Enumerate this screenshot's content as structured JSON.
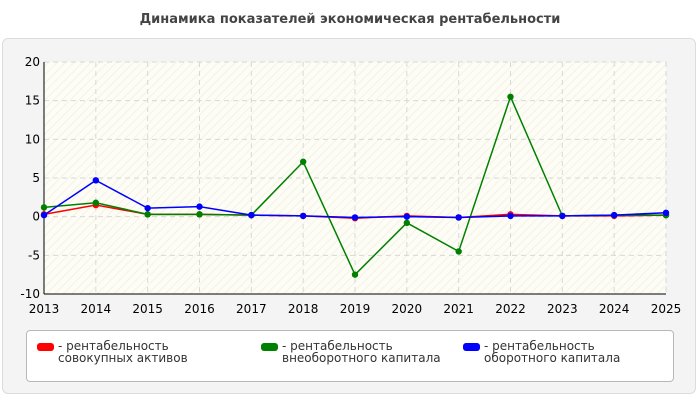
{
  "page_title": "Динамика показателей экономическая рентабельности",
  "chart_data": {
    "type": "line",
    "title": "Динамика показателей экономическая рентабельности",
    "xlabel": "",
    "ylabel": "",
    "x": [
      "2013",
      "2014",
      "2015",
      "2016",
      "2017",
      "2018",
      "2019",
      "2020",
      "2021",
      "2022",
      "2023",
      "2024",
      "2025"
    ],
    "ylim": [
      -10,
      20
    ],
    "yticks": [
      -10,
      -5,
      0,
      5,
      10,
      15,
      20
    ],
    "grid": true,
    "legend_position": "bottom",
    "series": [
      {
        "name": "рентабельность совокупных активов",
        "color": "#ff0000",
        "values": [
          0.3,
          1.5,
          0.3,
          0.3,
          0.2,
          0.1,
          -0.2,
          0.1,
          -0.1,
          0.3,
          0.1,
          0.1,
          0.2
        ]
      },
      {
        "name": "рентабельность внеоборотного капитала",
        "color": "#008000",
        "values": [
          1.2,
          1.8,
          0.3,
          0.3,
          0.2,
          7.1,
          -7.5,
          -0.8,
          -4.5,
          15.5,
          0.1,
          0.2,
          0.2
        ]
      },
      {
        "name": "рентабельность оборотного капитала",
        "color": "#0000ff",
        "values": [
          0.2,
          4.7,
          1.1,
          1.3,
          0.2,
          0.1,
          -0.1,
          0.0,
          -0.1,
          0.1,
          0.1,
          0.2,
          0.5
        ]
      }
    ]
  },
  "legend": {
    "items": [
      {
        "label": "- рентабельность совокупных активов",
        "color": "#ff0000"
      },
      {
        "label": "- рентабельность внеоборотного капитала",
        "color": "#008000"
      },
      {
        "label": "- рентабельность оборотного капитала",
        "color": "#0000ff"
      }
    ]
  }
}
